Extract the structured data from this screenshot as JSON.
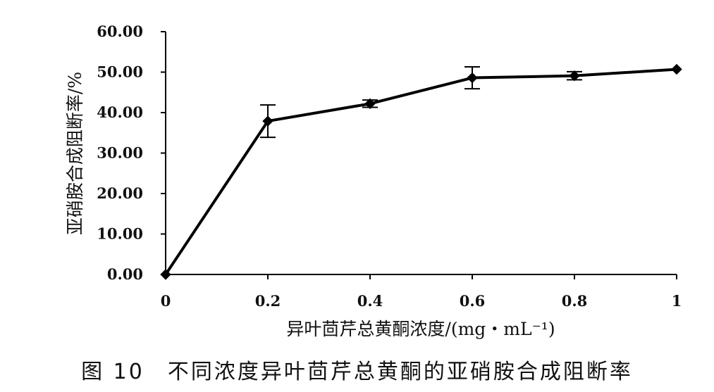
{
  "caption": "图 10　不同浓度异叶茴芹总黄酮的亚硝胺合成阻断率",
  "chart_data": {
    "type": "line",
    "title": "",
    "xlabel": "异叶茴芹总黄酮浓度/(mg・mL⁻¹)",
    "ylabel": "亚硝胺合成阻断率/%",
    "x": [
      0,
      0.2,
      0.4,
      0.6,
      0.8,
      1
    ],
    "x_tick_labels": [
      "0",
      "0.2",
      "0.4",
      "0.6",
      "0.8",
      "1"
    ],
    "y_tick_labels": [
      "0.00",
      "10.00",
      "20.00",
      "30.00",
      "40.00",
      "50.00",
      "60.00"
    ],
    "xlim": [
      0,
      1
    ],
    "ylim": [
      0,
      60
    ],
    "grid": false,
    "legend": "none",
    "series": [
      {
        "values": [
          0.0,
          37.9,
          42.2,
          48.6,
          49.1,
          50.7
        ],
        "error": [
          0.0,
          4.0,
          0.9,
          2.7,
          1.0,
          0.0
        ],
        "color": "#000000",
        "marker": "diamond"
      }
    ]
  }
}
